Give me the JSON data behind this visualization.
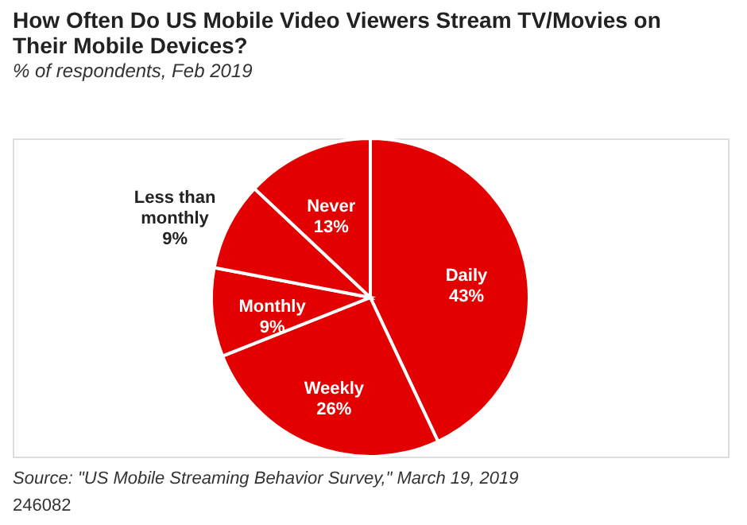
{
  "chart_data": {
    "type": "pie",
    "title": "How Often Do US Mobile Video Viewers Stream TV/Movies on Their Mobile Devices?",
    "subtitle": "% of respondents, Feb 2019",
    "categories": [
      "Daily",
      "Weekly",
      "Monthly",
      "Less than monthly",
      "Never"
    ],
    "values": [
      43,
      26,
      9,
      9,
      13
    ],
    "colors": [
      "#e30000",
      "#e30000",
      "#e30000",
      "#e30000",
      "#e30000"
    ],
    "value_labels": [
      "43%",
      "26%",
      "9%",
      "9%",
      "13%"
    ],
    "legend": false,
    "annotations": [
      "Source: \"US Mobile Streaming Behavior Survey,\" March 19, 2019",
      "246082"
    ]
  }
}
